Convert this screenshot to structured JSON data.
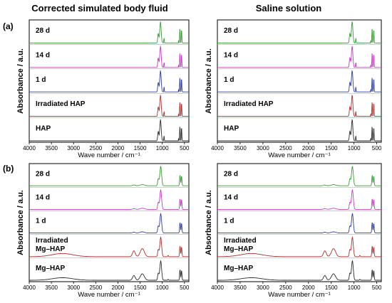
{
  "titles": {
    "left": "Corrected simulated body fluid",
    "right": "Saline solution"
  },
  "row_labels": {
    "a": "(a)",
    "b": "(b)"
  },
  "chart_data": [
    {
      "type": "line",
      "row": "a",
      "col": "left",
      "xlabel": "Wave number / cm⁻¹",
      "ylabel": "Absorbance / a.u.",
      "xlim": [
        4000,
        400
      ],
      "x_reversed": true,
      "x_ticks": [
        "4000",
        "3500",
        "3000",
        "2500",
        "2000",
        "1500",
        "1000",
        "500"
      ],
      "sample": "HAP",
      "series": [
        {
          "name": "HAP",
          "color": "#2b2b2b"
        },
        {
          "name": "Irradiated  HAP",
          "color": "#a83232"
        },
        {
          "name": "1 d",
          "color": "#2f3d9a"
        },
        {
          "name": "14 d",
          "color": "#c23cc2"
        },
        {
          "name": "28 d",
          "color": "#3a9a3a"
        }
      ]
    },
    {
      "type": "line",
      "row": "a",
      "col": "right",
      "xlabel": "Wave number / cm⁻¹",
      "ylabel": "Absorbance / a.u.",
      "xlim": [
        4000,
        400
      ],
      "x_reversed": true,
      "x_ticks": [
        "4000",
        "3500",
        "3000",
        "2500",
        "2000",
        "1500",
        "1000",
        "500"
      ],
      "sample": "HAP",
      "series": [
        {
          "name": "HAP",
          "color": "#2b2b2b"
        },
        {
          "name": "Irradiated  HAP",
          "color": "#a83232"
        },
        {
          "name": "1 d",
          "color": "#2f3d9a"
        },
        {
          "name": "14 d",
          "color": "#c23cc2"
        },
        {
          "name": "28 d",
          "color": "#3a9a3a"
        }
      ]
    },
    {
      "type": "line",
      "row": "b",
      "col": "left",
      "xlabel": "Wave number / cm⁻¹",
      "ylabel": "Absorbance / a.u.",
      "xlim": [
        4000,
        400
      ],
      "x_reversed": true,
      "x_ticks": [
        "4000",
        "3500",
        "3000",
        "2500",
        "2000",
        "1500",
        "1000",
        "500"
      ],
      "sample": "MgHAP",
      "series": [
        {
          "name": "Mg–HAP",
          "color": "#2b2b2b"
        },
        {
          "name": "Irradiated\nMg–HAP",
          "color": "#a83232"
        },
        {
          "name": "1 d",
          "color": "#2f3d9a"
        },
        {
          "name": "14 d",
          "color": "#c23cc2"
        },
        {
          "name": "28 d",
          "color": "#3a9a3a"
        }
      ]
    },
    {
      "type": "line",
      "row": "b",
      "col": "right",
      "xlabel": "Wave number / cm⁻¹",
      "ylabel": "Absorbance / a.u.",
      "xlim": [
        4000,
        400
      ],
      "x_reversed": true,
      "x_ticks": [
        "4000",
        "3500",
        "3000",
        "2500",
        "2000",
        "1500",
        "1000",
        "500"
      ],
      "sample": "MgHAP",
      "series": [
        {
          "name": "Mg–HAP",
          "color": "#2b2b2b"
        },
        {
          "name": "Irradiated\nMg–HAP",
          "color": "#a83232"
        },
        {
          "name": "1 d",
          "color": "#2f3d9a"
        },
        {
          "name": "14 d",
          "color": "#c23cc2"
        },
        {
          "name": "28 d",
          "color": "#3a9a3a"
        }
      ]
    }
  ]
}
